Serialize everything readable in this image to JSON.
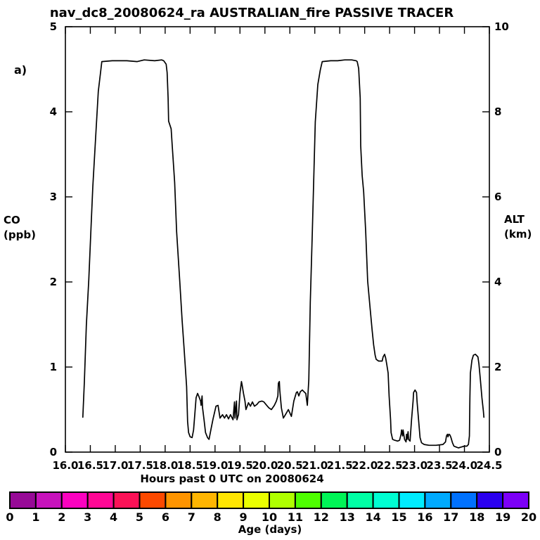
{
  "panel_label": "a)",
  "chart_data": {
    "type": "line",
    "title": "nav_dc8_20080624_ra AUSTRALIAN_fire PASSIVE TRACER",
    "xlabel": "Hours past 0 UTC on 20080624",
    "ylabel_left": [
      "CO",
      "(ppb)"
    ],
    "ylabel_right": [
      "ALT",
      "(km)"
    ],
    "xlim": [
      16.0,
      24.5
    ],
    "ylim_left": [
      0,
      5
    ],
    "ylim_right": [
      0,
      10
    ],
    "grid": false,
    "x_ticks": [
      "16.0",
      "16.5",
      "17.0",
      "17.5",
      "18.0",
      "18.5",
      "19.0",
      "19.5",
      "20.0",
      "20.5",
      "21.0",
      "21.5",
      "22.0",
      "22.5",
      "23.0",
      "23.5",
      "24.0",
      "24.5"
    ],
    "y_ticks_left": [
      "0",
      "1",
      "2",
      "3",
      "4",
      "5"
    ],
    "y_ticks_right": [
      "0",
      "2",
      "4",
      "6",
      "8",
      "10"
    ],
    "series": [
      {
        "name": "CO passive tracer",
        "color": "#000000",
        "points": [
          [
            16.35,
            0.41
          ],
          [
            16.38,
            0.83
          ],
          [
            16.42,
            1.49
          ],
          [
            16.47,
            2.03
          ],
          [
            16.51,
            2.59
          ],
          [
            16.55,
            3.12
          ],
          [
            16.61,
            3.74
          ],
          [
            16.66,
            4.24
          ],
          [
            16.71,
            4.49
          ],
          [
            16.73,
            4.59
          ],
          [
            16.94,
            4.6
          ],
          [
            17.23,
            4.6
          ],
          [
            17.44,
            4.59
          ],
          [
            17.58,
            4.61
          ],
          [
            17.79,
            4.6
          ],
          [
            17.93,
            4.61
          ],
          [
            17.97,
            4.6
          ],
          [
            18.02,
            4.56
          ],
          [
            18.04,
            4.46
          ],
          [
            18.06,
            4.16
          ],
          [
            18.07,
            3.89
          ],
          [
            18.12,
            3.8
          ],
          [
            18.14,
            3.62
          ],
          [
            18.19,
            3.17
          ],
          [
            18.23,
            2.59
          ],
          [
            18.29,
            2.03
          ],
          [
            18.34,
            1.55
          ],
          [
            18.38,
            1.22
          ],
          [
            18.43,
            0.77
          ],
          [
            18.45,
            0.36
          ],
          [
            18.47,
            0.23
          ],
          [
            18.5,
            0.18
          ],
          [
            18.54,
            0.17
          ],
          [
            18.57,
            0.26
          ],
          [
            18.6,
            0.48
          ],
          [
            18.62,
            0.64
          ],
          [
            18.65,
            0.69
          ],
          [
            18.68,
            0.65
          ],
          [
            18.71,
            0.6
          ],
          [
            18.72,
            0.55
          ],
          [
            18.74,
            0.66
          ],
          [
            18.75,
            0.52
          ],
          [
            18.78,
            0.38
          ],
          [
            18.81,
            0.23
          ],
          [
            18.85,
            0.17
          ],
          [
            18.88,
            0.15
          ],
          [
            18.92,
            0.27
          ],
          [
            18.96,
            0.39
          ],
          [
            19.02,
            0.54
          ],
          [
            19.06,
            0.55
          ],
          [
            19.1,
            0.4
          ],
          [
            19.15,
            0.44
          ],
          [
            19.19,
            0.4
          ],
          [
            19.23,
            0.44
          ],
          [
            19.27,
            0.39
          ],
          [
            19.31,
            0.44
          ],
          [
            19.36,
            0.38
          ],
          [
            19.39,
            0.59
          ],
          [
            19.4,
            0.4
          ],
          [
            19.43,
            0.6
          ],
          [
            19.44,
            0.38
          ],
          [
            19.47,
            0.44
          ],
          [
            19.5,
            0.69
          ],
          [
            19.53,
            0.83
          ],
          [
            19.54,
            0.8
          ],
          [
            19.57,
            0.69
          ],
          [
            19.6,
            0.6
          ],
          [
            19.62,
            0.5
          ],
          [
            19.67,
            0.58
          ],
          [
            19.71,
            0.54
          ],
          [
            19.75,
            0.59
          ],
          [
            19.79,
            0.54
          ],
          [
            19.84,
            0.56
          ],
          [
            19.88,
            0.59
          ],
          [
            19.94,
            0.6
          ],
          [
            19.98,
            0.59
          ],
          [
            20.02,
            0.56
          ],
          [
            20.08,
            0.52
          ],
          [
            20.13,
            0.5
          ],
          [
            20.19,
            0.55
          ],
          [
            20.23,
            0.6
          ],
          [
            20.26,
            0.66
          ],
          [
            20.27,
            0.81
          ],
          [
            20.29,
            0.83
          ],
          [
            20.3,
            0.72
          ],
          [
            20.33,
            0.52
          ],
          [
            20.37,
            0.4
          ],
          [
            20.41,
            0.44
          ],
          [
            20.47,
            0.5
          ],
          [
            20.53,
            0.42
          ],
          [
            20.58,
            0.6
          ],
          [
            20.63,
            0.7
          ],
          [
            20.65,
            0.71
          ],
          [
            20.68,
            0.66
          ],
          [
            20.71,
            0.71
          ],
          [
            20.75,
            0.73
          ],
          [
            20.8,
            0.7
          ],
          [
            20.82,
            0.69
          ],
          [
            20.85,
            0.55
          ],
          [
            20.88,
            0.85
          ],
          [
            20.91,
            1.76
          ],
          [
            20.95,
            2.59
          ],
          [
            21.01,
            3.88
          ],
          [
            21.06,
            4.32
          ],
          [
            21.11,
            4.49
          ],
          [
            21.15,
            4.59
          ],
          [
            21.32,
            4.6
          ],
          [
            21.46,
            4.6
          ],
          [
            21.6,
            4.61
          ],
          [
            21.74,
            4.61
          ],
          [
            21.83,
            4.6
          ],
          [
            21.85,
            4.59
          ],
          [
            21.88,
            4.51
          ],
          [
            21.91,
            4.16
          ],
          [
            21.92,
            3.6
          ],
          [
            21.95,
            3.25
          ],
          [
            21.98,
            3.06
          ],
          [
            22.02,
            2.59
          ],
          [
            22.06,
            2.01
          ],
          [
            22.11,
            1.68
          ],
          [
            22.15,
            1.43
          ],
          [
            22.18,
            1.26
          ],
          [
            22.21,
            1.14
          ],
          [
            22.23,
            1.09
          ],
          [
            22.28,
            1.07
          ],
          [
            22.32,
            1.07
          ],
          [
            22.35,
            1.07
          ],
          [
            22.37,
            1.12
          ],
          [
            22.4,
            1.15
          ],
          [
            22.42,
            1.11
          ],
          [
            22.44,
            1.04
          ],
          [
            22.47,
            0.93
          ],
          [
            22.49,
            0.66
          ],
          [
            22.52,
            0.38
          ],
          [
            22.53,
            0.23
          ],
          [
            22.56,
            0.15
          ],
          [
            22.6,
            0.14
          ],
          [
            22.66,
            0.13
          ],
          [
            22.7,
            0.14
          ],
          [
            22.73,
            0.21
          ],
          [
            22.74,
            0.26
          ],
          [
            22.76,
            0.19
          ],
          [
            22.77,
            0.26
          ],
          [
            22.8,
            0.15
          ],
          [
            22.83,
            0.12
          ],
          [
            22.84,
            0.21
          ],
          [
            22.85,
            0.15
          ],
          [
            22.87,
            0.24
          ],
          [
            22.88,
            0.15
          ],
          [
            22.91,
            0.13
          ],
          [
            22.94,
            0.38
          ],
          [
            22.97,
            0.6
          ],
          [
            22.98,
            0.7
          ],
          [
            23.01,
            0.73
          ],
          [
            23.04,
            0.7
          ],
          [
            23.05,
            0.6
          ],
          [
            23.08,
            0.38
          ],
          [
            23.11,
            0.17
          ],
          [
            23.14,
            0.11
          ],
          [
            23.19,
            0.09
          ],
          [
            23.29,
            0.08
          ],
          [
            23.43,
            0.08
          ],
          [
            23.57,
            0.09
          ],
          [
            23.62,
            0.12
          ],
          [
            23.64,
            0.19
          ],
          [
            23.66,
            0.21
          ],
          [
            23.67,
            0.18
          ],
          [
            23.69,
            0.21
          ],
          [
            23.71,
            0.2
          ],
          [
            23.73,
            0.17
          ],
          [
            23.76,
            0.11
          ],
          [
            23.79,
            0.07
          ],
          [
            23.83,
            0.06
          ],
          [
            23.88,
            0.05
          ],
          [
            23.94,
            0.06
          ],
          [
            24.0,
            0.07
          ],
          [
            24.05,
            0.07
          ],
          [
            24.08,
            0.09
          ],
          [
            24.1,
            0.19
          ],
          [
            24.11,
            0.64
          ],
          [
            24.12,
            0.93
          ],
          [
            24.15,
            1.08
          ],
          [
            24.18,
            1.14
          ],
          [
            24.22,
            1.15
          ],
          [
            24.27,
            1.12
          ],
          [
            24.29,
            1.04
          ],
          [
            24.32,
            0.85
          ],
          [
            24.35,
            0.64
          ],
          [
            24.38,
            0.48
          ],
          [
            24.39,
            0.41
          ]
        ]
      }
    ],
    "colorbar": {
      "title": "Age (days)",
      "range": [
        0,
        20
      ],
      "tick_labels": [
        "0",
        "1",
        "2",
        "3",
        "4",
        "5",
        "6",
        "7",
        "8",
        "9",
        "10",
        "11",
        "12",
        "13",
        "14",
        "15",
        "16",
        "17",
        "18",
        "19",
        "20"
      ],
      "segment_colors": [
        "#970A97",
        "#C713BC",
        "#FB02C0",
        "#FF0795",
        "#FB1257",
        "#FD4900",
        "#FE9400",
        "#FFB501",
        "#FFE501",
        "#EBFF00",
        "#AFFF00",
        "#4EFE00",
        "#00F556",
        "#00FFA5",
        "#00FED2",
        "#00ECFE",
        "#00AAFE",
        "#0071FE",
        "#2A00EF",
        "#7C00F8"
      ]
    }
  }
}
